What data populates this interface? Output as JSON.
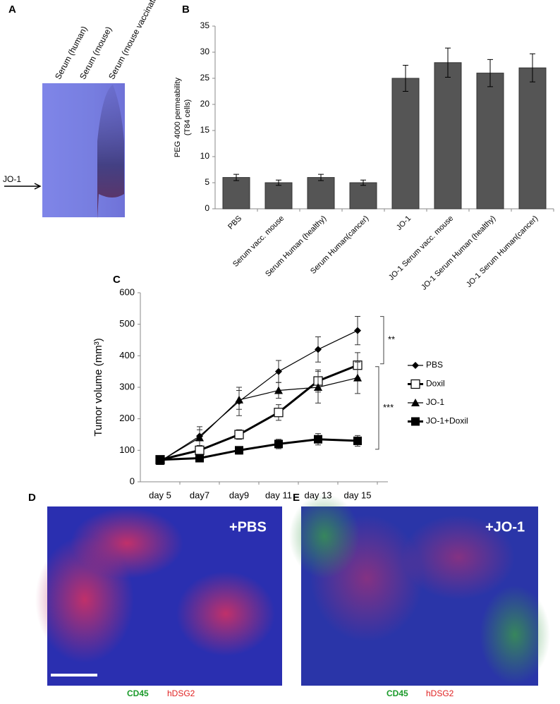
{
  "chart_data": [
    {
      "type": "bar",
      "panel": "B",
      "y_label": [
        "PEG 4000 permeability",
        "(T84 cells)"
      ],
      "categories": [
        "PBS",
        "Serum vacc. mouse",
        "Serum Human (healthy)",
        "Serum Human(cancer)",
        "JO-1",
        "JO-1 Serum vacc. mouse",
        "JO-1 Serum Human (healthy)",
        "JO-1 Serum Human(cancer)"
      ],
      "values": [
        6,
        5,
        6,
        5,
        25,
        28,
        26,
        27
      ],
      "errors": [
        0.6,
        0.5,
        0.6,
        0.5,
        2.5,
        2.8,
        2.6,
        2.7
      ],
      "color": "#555555",
      "ylim": [
        0,
        35
      ],
      "yticks": [
        0,
        5,
        10,
        15,
        20,
        25,
        30,
        35
      ]
    },
    {
      "type": "line",
      "panel": "C",
      "y_label": "Tumor volume (mm³)",
      "categories": [
        "day 5",
        "day7",
        "day9",
        "day 11",
        "day 13",
        "day 15"
      ],
      "series": [
        {
          "name": "PBS",
          "color": "#000000",
          "marker": "diamond",
          "thick": false,
          "values": [
            65,
            145,
            255,
            350,
            420,
            480
          ],
          "errors": [
            5,
            30,
            45,
            35,
            40,
            45
          ]
        },
        {
          "name": "Doxil",
          "color": "#000000",
          "marker": "open-square",
          "thick": true,
          "values": [
            70,
            100,
            150,
            220,
            320,
            370
          ],
          "errors": [
            5,
            15,
            15,
            25,
            35,
            40
          ]
        },
        {
          "name": "JO-1",
          "color": "#000000",
          "marker": "triangle",
          "thick": false,
          "values": [
            65,
            140,
            260,
            290,
            300,
            330
          ],
          "errors": [
            5,
            25,
            30,
            25,
            50,
            50
          ]
        },
        {
          "name": "JO-1+Doxil",
          "color": "#000000",
          "marker": "square",
          "thick": true,
          "values": [
            70,
            75,
            100,
            120,
            135,
            130
          ],
          "errors": [
            5,
            10,
            12,
            15,
            18,
            17
          ]
        }
      ],
      "annotations": [
        "**",
        "***"
      ],
      "ylim": [
        0,
        600
      ],
      "yticks": [
        0,
        100,
        200,
        300,
        400,
        500,
        600
      ]
    }
  ],
  "panels": {
    "a": {
      "label": "A",
      "lanes": [
        "Serum  (human)",
        "Serum (mouse)",
        "Serum (mouse vaccinated)"
      ],
      "arrow_label": "JO-1"
    },
    "d": {
      "label": "D",
      "overlay": "+PBS",
      "stain_green": "CD45",
      "stain_red": "hDSG2"
    },
    "e": {
      "label": "E",
      "overlay": "+JO-1",
      "stain_green": "CD45",
      "stain_red": "hDSG2"
    },
    "b": {
      "label": "B"
    },
    "c": {
      "label": "C"
    }
  }
}
